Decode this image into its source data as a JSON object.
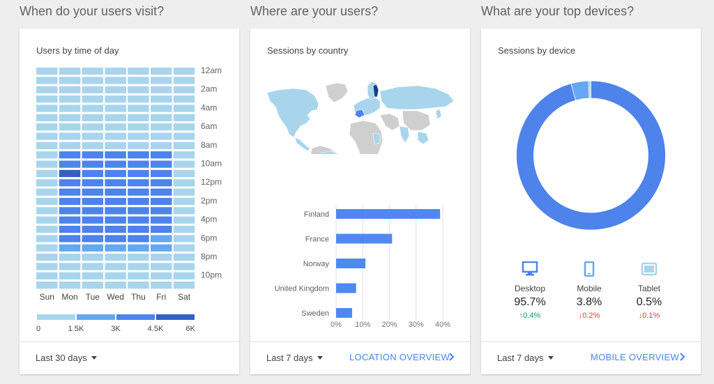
{
  "sections": {
    "time": "When do your users visit?",
    "location": "Where are your users?",
    "devices": "What are your top devices?"
  },
  "time_card": {
    "title": "Users by time of day",
    "hours": [
      "12am",
      "2am",
      "4am",
      "6am",
      "8am",
      "10am",
      "12pm",
      "2pm",
      "4pm",
      "6pm",
      "8pm",
      "10pm"
    ],
    "days": [
      "Sun",
      "Mon",
      "Tue",
      "Wed",
      "Thu",
      "Fri",
      "Sat"
    ],
    "legend_labels": [
      "0",
      "1.5K",
      "3K",
      "4.5K",
      "6K"
    ],
    "colors": [
      "#a8d5ec",
      "#64a7f2",
      "#4d83ea",
      "#3360c4"
    ],
    "footer_range": "Last 30 days"
  },
  "location_card": {
    "title": "Sessions by country",
    "footer_range": "Last 7 days",
    "footer_link": "LOCATION OVERVIEW",
    "bar_color": "#5089ee"
  },
  "device_card": {
    "title": "Sessions by device",
    "footer_range": "Last 7 days",
    "footer_link": "MOBILE OVERVIEW",
    "items": [
      {
        "name": "Desktop",
        "pct": "95.7%",
        "change": "0.4%",
        "direction": "up",
        "color": "#4d83ea",
        "icon": "desktop-icon"
      },
      {
        "name": "Mobile",
        "pct": "3.8%",
        "change": "0.2%",
        "direction": "down",
        "color": "#64a7f2",
        "icon": "mobile-icon"
      },
      {
        "name": "Tablet",
        "pct": "0.5%",
        "change": "0.1%",
        "direction": "down",
        "color": "#a8d5ec",
        "icon": "tablet-icon"
      }
    ]
  },
  "chart_data": [
    {
      "type": "heatmap",
      "title": "Users by time of day",
      "x": [
        "Sun",
        "Mon",
        "Tue",
        "Wed",
        "Thu",
        "Fri",
        "Sat"
      ],
      "y_ticks": [
        "12am",
        "2am",
        "4am",
        "6am",
        "8am",
        "10am",
        "12pm",
        "2pm",
        "4pm",
        "6pm",
        "8pm",
        "10pm"
      ],
      "legend_ticks": [
        "0",
        "1.5K",
        "3K",
        "4.5K",
        "6K"
      ],
      "scale_max": 6000,
      "values": [
        [
          400,
          300,
          300,
          300,
          300,
          300,
          300
        ],
        [
          300,
          250,
          250,
          250,
          250,
          250,
          200
        ],
        [
          250,
          200,
          200,
          200,
          200,
          200,
          200
        ],
        [
          200,
          200,
          200,
          200,
          200,
          200,
          200
        ],
        [
          250,
          300,
          300,
          300,
          300,
          300,
          250
        ],
        [
          300,
          400,
          400,
          400,
          400,
          400,
          300
        ],
        [
          350,
          600,
          600,
          600,
          600,
          600,
          350
        ],
        [
          400,
          800,
          800,
          800,
          800,
          800,
          400
        ],
        [
          500,
          1300,
          1200,
          1200,
          1200,
          1200,
          500
        ],
        [
          600,
          3200,
          3200,
          3300,
          3200,
          3200,
          600
        ],
        [
          600,
          3400,
          3400,
          3400,
          3300,
          3300,
          650
        ],
        [
          600,
          4800,
          3800,
          3900,
          3800,
          3700,
          650
        ],
        [
          600,
          3700,
          3700,
          3700,
          3600,
          3500,
          650
        ],
        [
          600,
          3400,
          3400,
          3400,
          3300,
          3300,
          650
        ],
        [
          600,
          3600,
          3600,
          3700,
          3600,
          3500,
          650
        ],
        [
          600,
          3600,
          3500,
          3600,
          3500,
          3300,
          650
        ],
        [
          600,
          3700,
          3600,
          3700,
          3600,
          3400,
          650
        ],
        [
          600,
          3500,
          3400,
          3500,
          3400,
          3000,
          650
        ],
        [
          600,
          3300,
          3300,
          3300,
          3300,
          2800,
          650
        ],
        [
          600,
          2500,
          2400,
          2500,
          2400,
          1500,
          600
        ],
        [
          500,
          1400,
          1300,
          1400,
          1300,
          900,
          500
        ],
        [
          450,
          900,
          900,
          900,
          900,
          700,
          450
        ],
        [
          450,
          700,
          700,
          700,
          700,
          600,
          450
        ],
        [
          400,
          500,
          500,
          500,
          500,
          450,
          400
        ]
      ]
    },
    {
      "type": "bar",
      "orientation": "horizontal",
      "title": "Sessions by country",
      "categories": [
        "Finland",
        "France",
        "Norway",
        "United Kingdom",
        "Sweden"
      ],
      "values": [
        39,
        21,
        11,
        7.5,
        6
      ],
      "x_ticks": [
        "0%",
        "10%",
        "20%",
        "30%",
        "40%"
      ],
      "xlim": [
        0,
        40
      ]
    },
    {
      "type": "pie",
      "title": "Sessions by device",
      "donut": true,
      "categories": [
        "Desktop",
        "Mobile",
        "Tablet"
      ],
      "values": [
        95.7,
        3.8,
        0.5
      ]
    }
  ]
}
